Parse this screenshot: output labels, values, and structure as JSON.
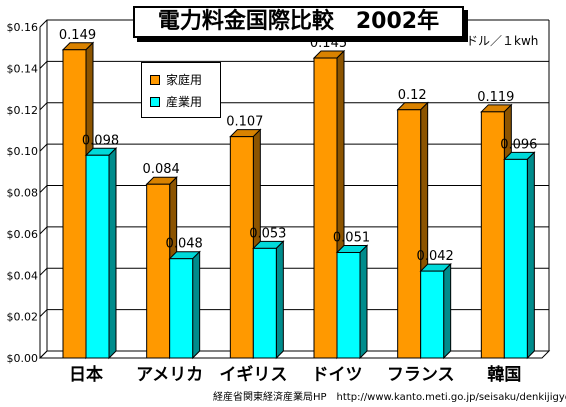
{
  "chart_data": {
    "type": "bar",
    "title": "電力料金国際比較　2002年",
    "unit_label": "ドル／１kwh",
    "categories": [
      "日本",
      "アメリカ",
      "イギリス",
      "ドイツ",
      "フランス",
      "韓国"
    ],
    "series": [
      {
        "name": "家庭用",
        "values": [
          0.149,
          0.084,
          0.107,
          0.145,
          0.12,
          0.119
        ],
        "labels": [
          "0.149",
          "0.084",
          "0.107",
          "0.145",
          "0.12",
          "0.119"
        ],
        "color": "#FF9900"
      },
      {
        "name": "産業用",
        "values": [
          0.098,
          0.048,
          0.053,
          0.051,
          0.042,
          0.096
        ],
        "labels": [
          "0.098",
          "0.048",
          "0.053",
          "0.051",
          "0.042",
          "0.096"
        ],
        "color": "#00FFFF"
      }
    ],
    "ylim": [
      0,
      0.16
    ],
    "yticks": [
      "$0.00",
      "$0.02",
      "$0.04",
      "$0.06",
      "$0.08",
      "$0.10",
      "$0.12",
      "$0.14",
      "$0.16"
    ],
    "grid": true,
    "legend_position": "top-left",
    "source": "経産省関東経済産業局HP　http://www.kanto.meti.go.jp/seisaku/denkijigyo/より"
  }
}
